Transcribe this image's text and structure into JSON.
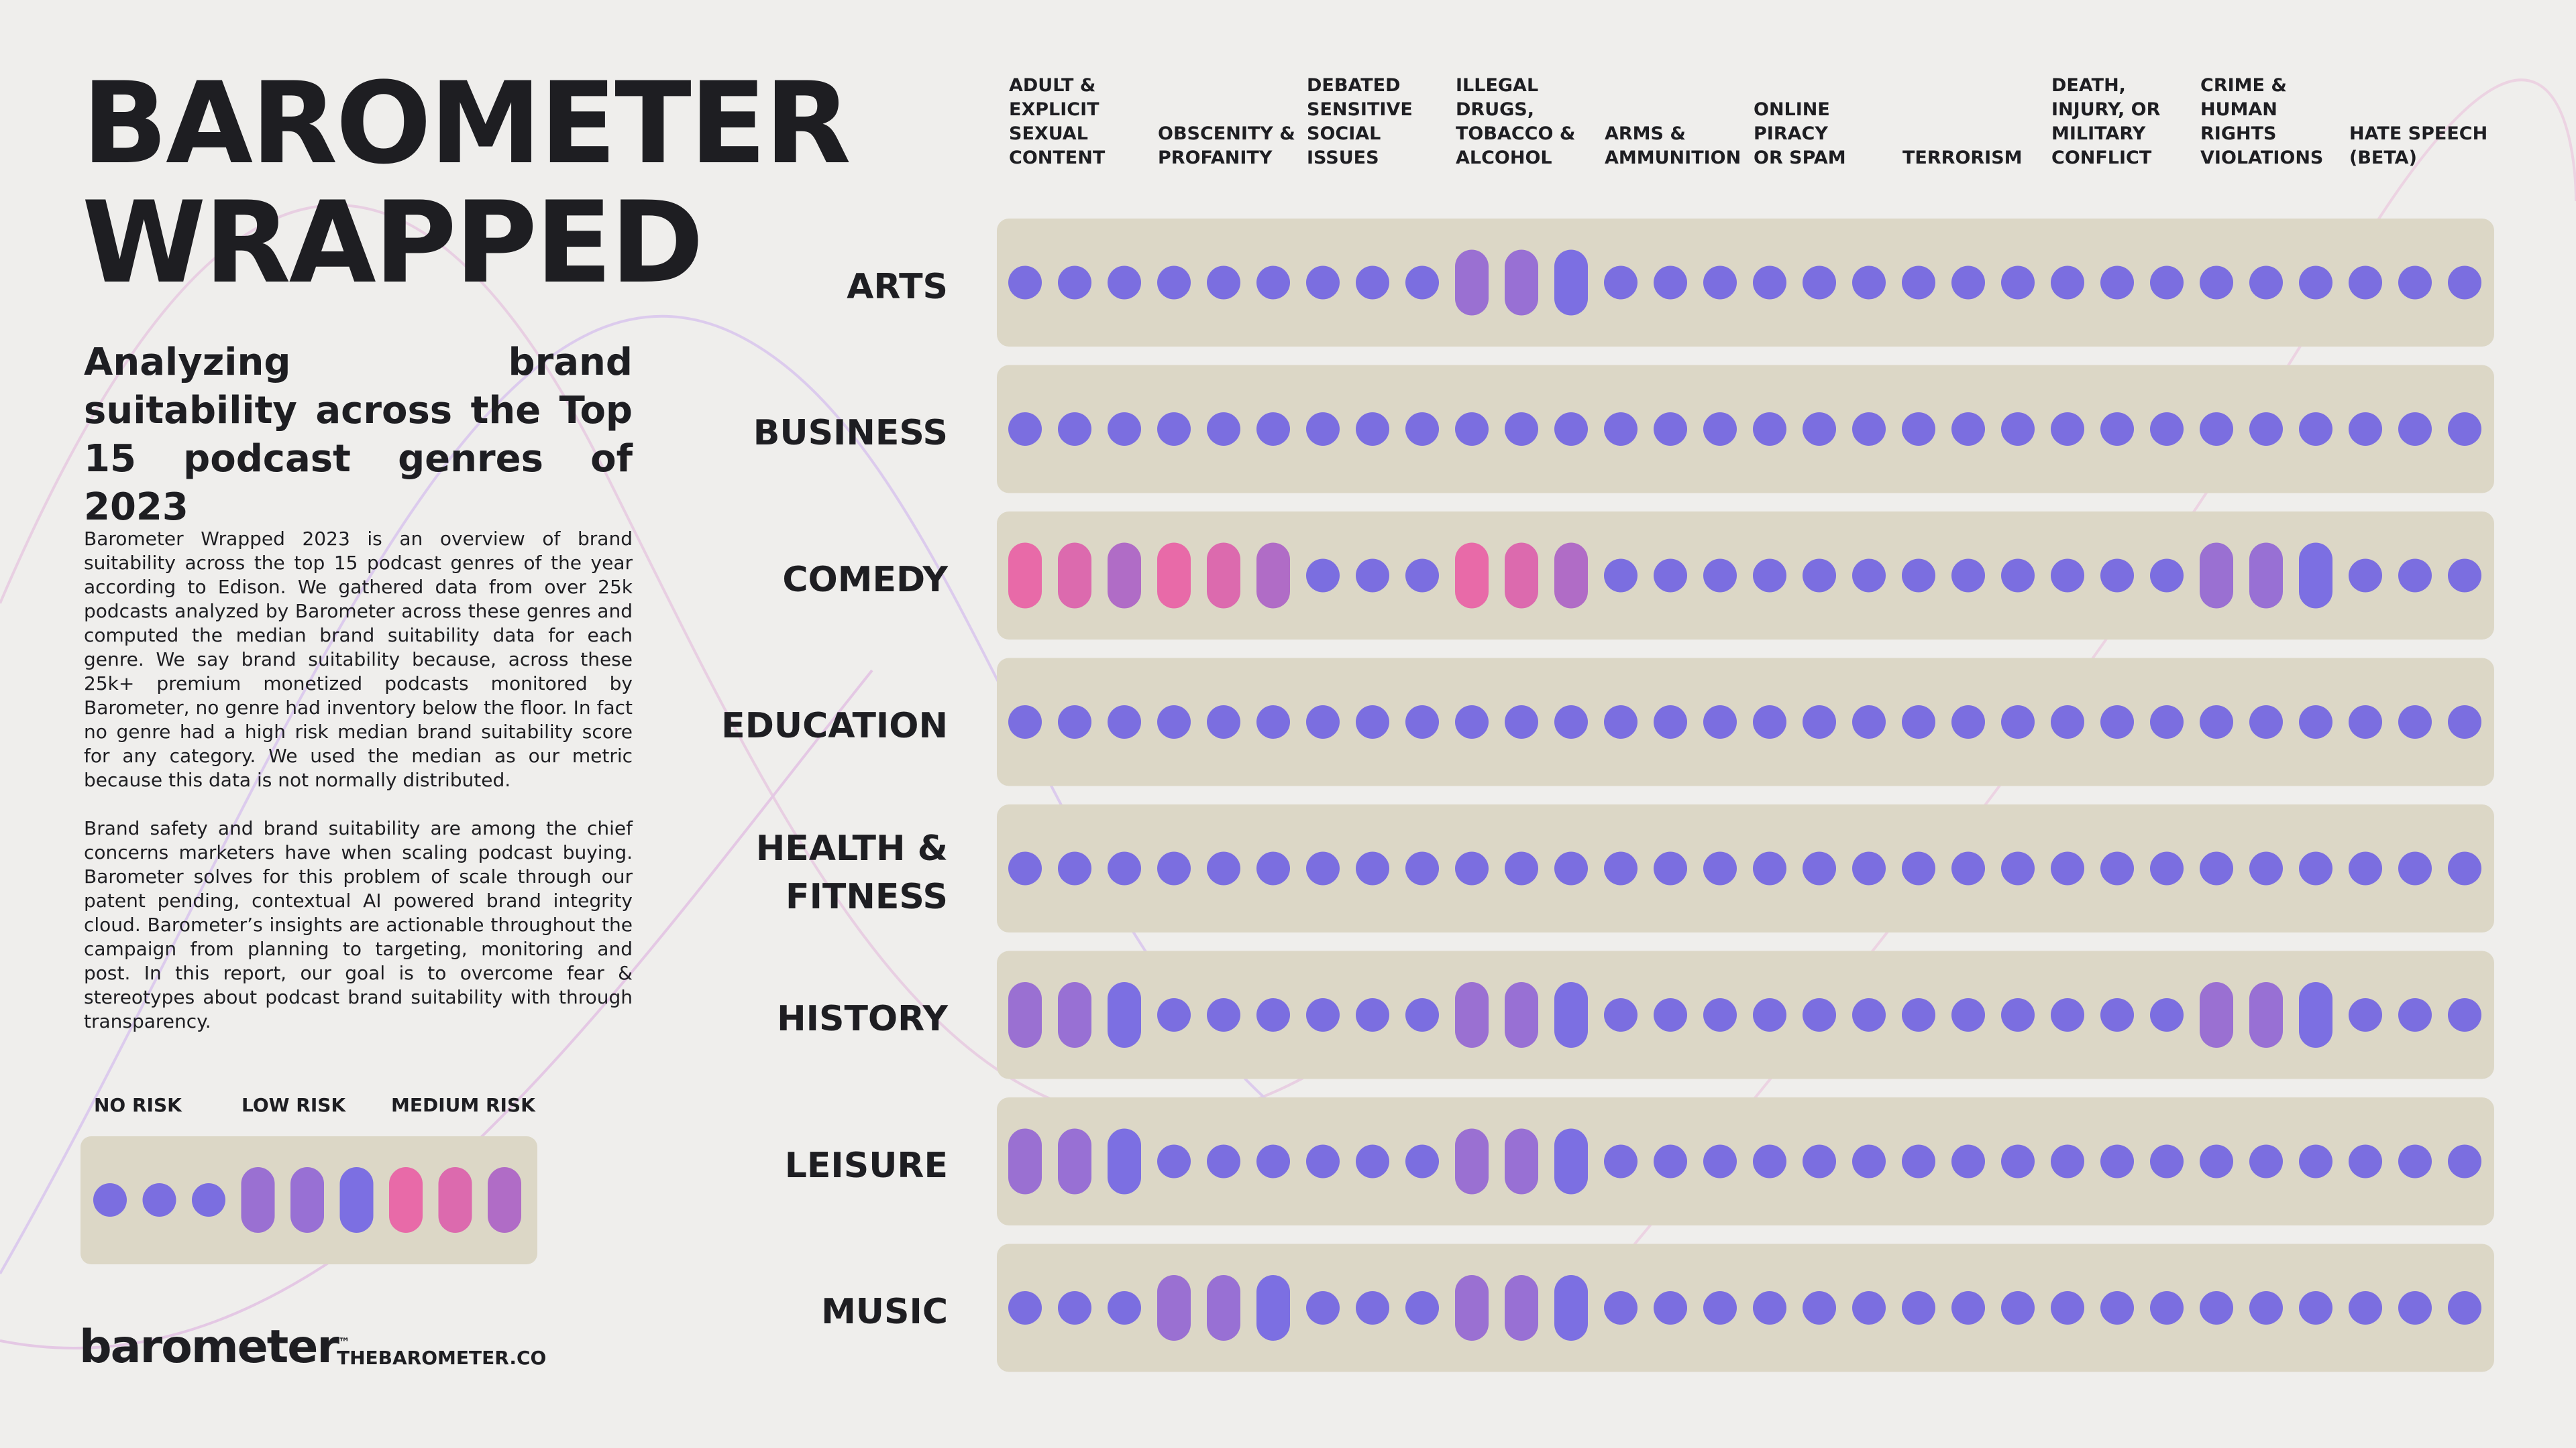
{
  "header": {
    "title": "BAROMETER\nWRAPPED",
    "subtitle": "Analyzing brand suitability across the Top 15 podcast genres of 2023",
    "paragraphs": [
      "Barometer Wrapped 2023 is an overview of brand suitability across the top 15 podcast genres of the year according to Edison. We gathered data from over 25k podcasts analyzed by Barometer across these genres and computed the median brand suitability data for each genre. We say brand suitability because, across these 25k+ premium monetized podcasts monitored by Barometer, no genre had inventory below the floor. In fact no genre had a high risk median brand suitability score for any category. We used the median as our metric because this data is not normally distributed.",
      "Brand safety and brand suitability are among the chief concerns marketers have when scaling podcast buying. Barometer solves for this problem of scale through our patent pending, contextual AI powered brand integrity cloud. Barometer’s insights are actionable throughout the campaign from planning to targeting, monitoring and post. In this report, our goal is to overcome fear & stereotypes about podcast brand suitability with through transparency."
    ]
  },
  "footer": {
    "logo": "barometer",
    "trademark": "™",
    "url": "THEBAROMETER.CO"
  },
  "chart_data": {
    "type": "dot-matrix",
    "categories": [
      "ADULT &\nEXPLICIT\nSEXUAL\nCONTENT",
      "OBSCENITY &\nPROFANITY",
      "DEBATED\nSENSITIVE\nSOCIAL\nISSUES",
      "ILLEGAL\nDRUGS,\nTOBACCO &\nALCOHOL",
      "ARMS &\nAMMUNITION",
      "ONLINE\nPIRACY\nOR SPAM",
      "TERRORISM",
      "DEATH,\nINJURY, OR\nMILITARY\nCONFLICT",
      "CRIME &\nHUMAN\nRIGHTS\nVIOLATIONS",
      "HATE SPEECH\n(BETA)"
    ],
    "levels": [
      "NO RISK",
      "LOW RISK",
      "MEDIUM RISK"
    ],
    "level_colors": [
      [
        "#7b6ee0",
        "#7b6ee0",
        "#7b6ee0"
      ],
      [
        "#9a70d2",
        "#9870d4",
        "#7c6fe2"
      ],
      [
        "#e86aa8",
        "#dc6aae",
        "#b06cc6"
      ]
    ],
    "series": [
      {
        "name": "ARTS",
        "values": [
          0,
          0,
          0,
          1,
          0,
          0,
          0,
          0,
          0,
          0
        ]
      },
      {
        "name": "BUSINESS",
        "values": [
          0,
          0,
          0,
          0,
          0,
          0,
          0,
          0,
          0,
          0
        ]
      },
      {
        "name": "COMEDY",
        "values": [
          2,
          2,
          0,
          2,
          0,
          0,
          0,
          0,
          1,
          0
        ]
      },
      {
        "name": "EDUCATION",
        "values": [
          0,
          0,
          0,
          0,
          0,
          0,
          0,
          0,
          0,
          0
        ]
      },
      {
        "name": "HEALTH &\nFITNESS",
        "values": [
          0,
          0,
          0,
          0,
          0,
          0,
          0,
          0,
          0,
          0
        ]
      },
      {
        "name": "HISTORY",
        "values": [
          1,
          0,
          0,
          1,
          0,
          0,
          0,
          0,
          1,
          0
        ]
      },
      {
        "name": "LEISURE",
        "values": [
          1,
          0,
          0,
          1,
          0,
          0,
          0,
          0,
          0,
          0
        ]
      },
      {
        "name": "MUSIC",
        "values": [
          0,
          1,
          0,
          1,
          0,
          0,
          0,
          0,
          0,
          0
        ]
      }
    ]
  }
}
